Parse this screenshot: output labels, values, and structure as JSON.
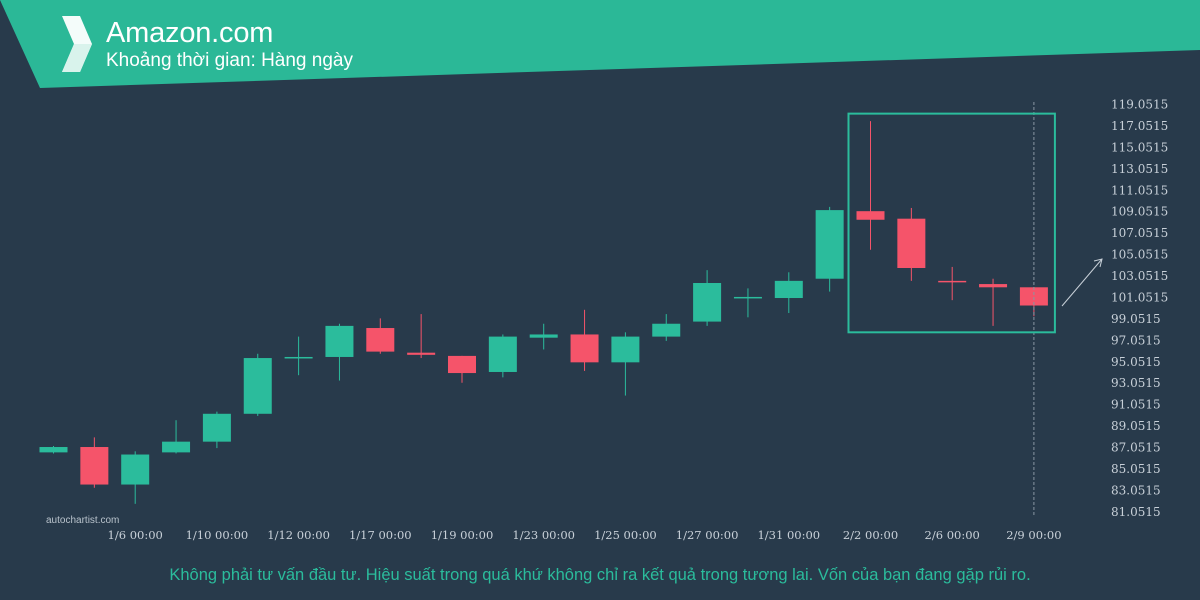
{
  "header": {
    "title": "Amazon.com",
    "subtitle": "Khoảng thời gian: Hàng ngày"
  },
  "watermark": "autochartist.com",
  "disclaimer": "Không phải tư vấn đầu tư. Hiệu suất trong quá khứ không chỉ ra kết quả trong tương lai. Vốn của bạn đang gặp rủi ro.",
  "colors": {
    "background": "#283a4b",
    "header_band": "#2bb897",
    "bullish": "#2bbc9c",
    "bearish": "#f5546a",
    "pattern_box": "#2bbc9c",
    "axis_text": "#c8d0d8"
  },
  "chart_data": {
    "type": "candlestick",
    "y_ticks": [
      "119.0515",
      "117.0515",
      "115.0515",
      "113.0515",
      "111.0515",
      "109.0515",
      "107.0515",
      "105.0515",
      "103.0515",
      "101.0515",
      "99.0515",
      "97.0515",
      "95.0515",
      "93.0515",
      "91.0515",
      "89.0515",
      "87.0515",
      "85.0515",
      "83.0515",
      "81.0515"
    ],
    "ylim": [
      80.0,
      120.0
    ],
    "x_tick_labels": [
      {
        "label": "1/6 00:00",
        "index": 2
      },
      {
        "label": "1/10 00:00",
        "index": 4
      },
      {
        "label": "1/12 00:00",
        "index": 6
      },
      {
        "label": "1/17 00:00",
        "index": 8
      },
      {
        "label": "1/19 00:00",
        "index": 10
      },
      {
        "label": "1/23 00:00",
        "index": 12
      },
      {
        "label": "1/25 00:00",
        "index": 14
      },
      {
        "label": "1/27 00:00",
        "index": 16
      },
      {
        "label": "1/31 00:00",
        "index": 18
      },
      {
        "label": "2/2 00:00",
        "index": 20
      },
      {
        "label": "2/6 00:00",
        "index": 22
      },
      {
        "label": "2/9 00:00",
        "index": 24
      }
    ],
    "candles": [
      {
        "o": 86.6,
        "h": 87.2,
        "l": 86.5,
        "c": 87.1
      },
      {
        "o": 87.1,
        "h": 88.0,
        "l": 83.3,
        "c": 83.6
      },
      {
        "o": 83.6,
        "h": 86.7,
        "l": 81.8,
        "c": 86.4
      },
      {
        "o": 86.6,
        "h": 89.6,
        "l": 86.5,
        "c": 87.6
      },
      {
        "o": 87.6,
        "h": 90.4,
        "l": 87.0,
        "c": 90.2
      },
      {
        "o": 90.2,
        "h": 95.8,
        "l": 90.0,
        "c": 95.4
      },
      {
        "o": 95.5,
        "h": 97.4,
        "l": 93.8,
        "c": 95.5
      },
      {
        "o": 95.5,
        "h": 98.6,
        "l": 93.3,
        "c": 98.4
      },
      {
        "o": 98.2,
        "h": 99.1,
        "l": 95.8,
        "c": 96.0
      },
      {
        "o": 95.9,
        "h": 99.5,
        "l": 95.4,
        "c": 95.7
      },
      {
        "o": 95.6,
        "h": 95.6,
        "l": 93.1,
        "c": 94.0
      },
      {
        "o": 94.1,
        "h": 97.6,
        "l": 93.6,
        "c": 97.4
      },
      {
        "o": 97.3,
        "h": 98.6,
        "l": 96.2,
        "c": 97.6
      },
      {
        "o": 97.6,
        "h": 99.9,
        "l": 94.2,
        "c": 95.0
      },
      {
        "o": 95.0,
        "h": 97.8,
        "l": 91.9,
        "c": 97.4
      },
      {
        "o": 97.4,
        "h": 99.5,
        "l": 97.0,
        "c": 98.6
      },
      {
        "o": 98.8,
        "h": 103.6,
        "l": 98.4,
        "c": 102.4
      },
      {
        "o": 101.0,
        "h": 101.9,
        "l": 99.2,
        "c": 101.1
      },
      {
        "o": 101.0,
        "h": 103.4,
        "l": 99.6,
        "c": 102.6
      },
      {
        "o": 102.8,
        "h": 109.5,
        "l": 101.6,
        "c": 109.2
      },
      {
        "o": 109.1,
        "h": 117.5,
        "l": 105.5,
        "c": 108.3
      },
      {
        "o": 108.4,
        "h": 109.4,
        "l": 102.6,
        "c": 103.8
      },
      {
        "o": 102.6,
        "h": 103.9,
        "l": 100.8,
        "c": 102.5
      },
      {
        "o": 102.3,
        "h": 102.8,
        "l": 98.4,
        "c": 102.0
      },
      {
        "o": 102.0,
        "h": 102.0,
        "l": 99.3,
        "c": 100.3
      }
    ],
    "pattern_box": {
      "start_index": 20,
      "end_index": 24,
      "y_top": 118.2,
      "y_bottom": 97.8
    },
    "forecast_direction": "up",
    "current_time_line_index": 24
  }
}
